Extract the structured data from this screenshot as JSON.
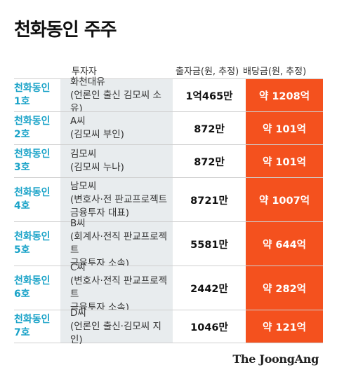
{
  "title": "천화동인 주주",
  "chart_data": {
    "type": "table",
    "columns": [
      "투자자",
      "출자금(원, 추정)",
      "배당금(원, 추정)"
    ],
    "rows": [
      {
        "name": [
          "천화동인",
          "1호"
        ],
        "investor": [
          "화천대유",
          "(언론인 출신 김모씨 소유)"
        ],
        "amount": "1억465만",
        "dividend": "약 1208억"
      },
      {
        "name": [
          "천화동인",
          "2호"
        ],
        "investor": [
          "A씨",
          "(김모씨 부인)"
        ],
        "amount": "872만",
        "dividend": "약 101억"
      },
      {
        "name": [
          "천화동인",
          "3호"
        ],
        "investor": [
          "김모씨",
          "(김모씨 누나)"
        ],
        "amount": "872만",
        "dividend": "약 101억"
      },
      {
        "name": [
          "천화동인",
          "4호"
        ],
        "investor": [
          "남모씨",
          "(변호사·전 판교프로젝트",
          "금융투자 대표)"
        ],
        "amount": "8721만",
        "dividend": "약 1007억"
      },
      {
        "name": [
          "천화동인",
          "5호"
        ],
        "investor": [
          "B씨",
          "(회계사·전직 판교프로젝트",
          "금융투자 소속)"
        ],
        "amount": "5581만",
        "dividend": "약 644억"
      },
      {
        "name": [
          "천화동인",
          "6호"
        ],
        "investor": [
          "C씨",
          "(변호사·전직 판교프로젝트",
          "금융투자 소속)"
        ],
        "amount": "2442만",
        "dividend": "약 282억"
      },
      {
        "name": [
          "천화동인",
          "7호"
        ],
        "investor": [
          "D씨",
          "(언론인 출신·김모씨 지인)"
        ],
        "amount": "1046만",
        "dividend": "약 121억"
      }
    ],
    "colors": {
      "accent": "#f4511e",
      "name_color": "#1aa3c8",
      "investor_bg": "#e8ecee"
    }
  },
  "source_logo": "The JoongAng"
}
